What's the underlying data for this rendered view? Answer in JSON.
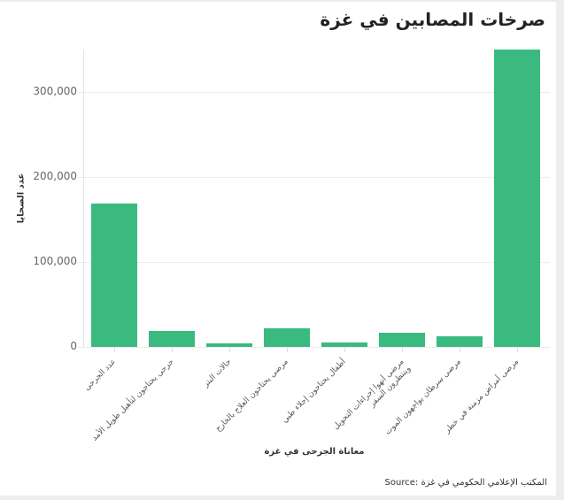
{
  "title": "صرخات المصابين في غزة",
  "source": "Source: المكتب الإعلامي الحكومي في غزة",
  "colors": {
    "bar": "#3aba7f",
    "grid": "#ececec",
    "background": "#ffffff",
    "frame": "#ededed"
  },
  "chart_data": {
    "type": "bar",
    "title": "صرخات المصابين في غزة",
    "xlabel": "معاناة الجرحى في غزة",
    "ylabel": "عدد الضحايا",
    "ylim": [
      0,
      350000
    ],
    "yticks": [
      "0",
      "100,000",
      "200,000",
      "300,000"
    ],
    "grid": true,
    "categories": [
      "عدد الجرحى",
      "جرحى يحتاجون لتأهيل طويل الأمد",
      "حالات البتر",
      "مرضى يحتاجون العلاج بالخارج",
      "أطفال يحتاجون إجلاء طبي",
      "مرضى أنهوا إجراءات التحويل وينتظرون السفر",
      "مرضى سرطان يواجهون الموت",
      "مرضى أمراض مزمنة في خطر"
    ],
    "values": [
      169000,
      18500,
      4000,
      21500,
      5000,
      16500,
      12000,
      350000
    ],
    "source": "Source: المكتب الإعلامي الحكومي في غزة"
  }
}
